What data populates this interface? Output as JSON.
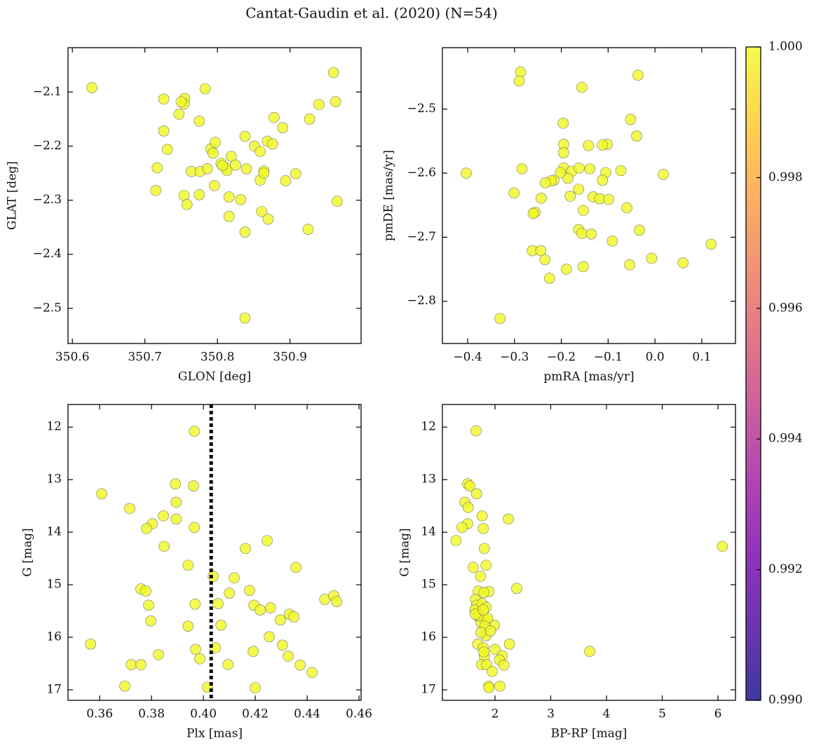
{
  "title": "Cantat-Gaudin et al. (2020) (N=54)",
  "chart_data": [
    {
      "type": "scatter",
      "xlabel": "GLON [deg]",
      "ylabel": "GLAT [deg]",
      "color": "#f0f921",
      "xlim": [
        350.594,
        350.998
      ],
      "ylim": [
        -2.565,
        -2.018
      ],
      "xticks": [
        350.6,
        350.7,
        350.8,
        350.9
      ],
      "yticks": [
        {
          "value": -2.1,
          "label": "−2.1"
        },
        {
          "value": -2.2,
          "label": "−2.2"
        },
        {
          "value": -2.3,
          "label": "−2.3"
        },
        {
          "value": -2.4,
          "label": "−2.4"
        },
        {
          "value": -2.5,
          "label": "−2.5"
        }
      ],
      "x": [
        350.627,
        350.726,
        350.755,
        350.754,
        350.783,
        350.96,
        350.963,
        350.94,
        350.878,
        350.927,
        350.89,
        350.726,
        350.747,
        350.775,
        350.838,
        350.869,
        350.876,
        350.851,
        350.859,
        350.731,
        350.791,
        350.794,
        350.797,
        350.819,
        350.805,
        350.812,
        350.813,
        350.825,
        350.717,
        350.764,
        350.776,
        350.786,
        350.84,
        350.864,
        350.859,
        350.908,
        350.894,
        350.715,
        350.754,
        350.775,
        350.796,
        350.816,
        350.832,
        350.965,
        350.758,
        350.861,
        350.816,
        350.87,
        350.925,
        350.838,
        350.838,
        350.75,
        350.807,
        350.864
      ],
      "values": [
        -2.092,
        -2.113,
        -2.112,
        -2.122,
        -2.094,
        -2.064,
        -2.118,
        -2.123,
        -2.147,
        -2.15,
        -2.166,
        -2.172,
        -2.141,
        -2.154,
        -2.182,
        -2.191,
        -2.196,
        -2.2,
        -2.21,
        -2.206,
        -2.205,
        -2.213,
        -2.193,
        -2.219,
        -2.232,
        -2.24,
        -2.245,
        -2.235,
        -2.24,
        -2.247,
        -2.247,
        -2.242,
        -2.242,
        -2.246,
        -2.263,
        -2.251,
        -2.264,
        -2.282,
        -2.291,
        -2.29,
        -2.273,
        -2.294,
        -2.299,
        -2.302,
        -2.308,
        -2.321,
        -2.33,
        -2.335,
        -2.354,
        -2.359,
        -2.518,
        -2.118,
        -2.236,
        -2.25
      ]
    },
    {
      "type": "scatter",
      "xlabel": "pmRA [mas/yr]",
      "ylabel": "pmDE [mas/yr]",
      "color": "#f0f921",
      "xlim": [
        -0.454,
        0.172
      ],
      "ylim": [
        -2.866,
        -2.404
      ],
      "xticks": [
        {
          "value": -0.4,
          "label": "−0.4"
        },
        {
          "value": -0.3,
          "label": "−0.3"
        },
        {
          "value": -0.2,
          "label": "−0.2"
        },
        {
          "value": -0.1,
          "label": "−0.1"
        },
        {
          "value": 0,
          "label": "0.0"
        },
        0.1
      ],
      "yticks": [
        {
          "value": -2.5,
          "label": "−2.5"
        },
        {
          "value": -2.6,
          "label": "−2.6"
        },
        {
          "value": -2.7,
          "label": "−2.7"
        },
        {
          "value": -2.8,
          "label": "−2.8"
        }
      ],
      "x": [
        -0.287,
        -0.29,
        -0.036,
        -0.156,
        -0.052,
        -0.196,
        -0.039,
        -0.195,
        -0.142,
        -0.102,
        -0.112,
        -0.195,
        -0.284,
        -0.403,
        -0.195,
        -0.178,
        -0.162,
        -0.139,
        -0.105,
        -0.073,
        0.018,
        -0.186,
        -0.216,
        -0.222,
        -0.234,
        -0.112,
        -0.301,
        -0.163,
        -0.181,
        -0.243,
        -0.132,
        -0.118,
        -0.256,
        -0.06,
        -0.033,
        -0.163,
        -0.156,
        -0.136,
        -0.091,
        -0.262,
        -0.244,
        -0.235,
        -0.007,
        0.12,
        0.06,
        -0.054,
        -0.189,
        -0.153,
        -0.225,
        -0.331,
        -0.202,
        -0.153,
        -0.099,
        -0.26
      ],
      "values": [
        -2.442,
        -2.456,
        -2.447,
        -2.466,
        -2.516,
        -2.522,
        -2.542,
        -2.555,
        -2.557,
        -2.555,
        -2.556,
        -2.568,
        -2.593,
        -2.6,
        -2.592,
        -2.597,
        -2.592,
        -2.593,
        -2.599,
        -2.596,
        -2.602,
        -2.608,
        -2.611,
        -2.612,
        -2.615,
        -2.611,
        -2.631,
        -2.625,
        -2.636,
        -2.639,
        -2.637,
        -2.64,
        -2.661,
        -2.654,
        -2.689,
        -2.688,
        -2.694,
        -2.695,
        -2.706,
        -2.721,
        -2.721,
        -2.735,
        -2.733,
        -2.711,
        -2.74,
        -2.743,
        -2.75,
        -2.746,
        -2.764,
        -2.827,
        -2.599,
        -2.658,
        -2.641,
        -2.663
      ]
    },
    {
      "type": "scatter",
      "xlabel": "Plx [mas]",
      "ylabel": "G [mag]",
      "color": "#f0f921",
      "vline": 0.403,
      "xlim": [
        0.3478,
        0.4608
      ],
      "ylim": [
        17.2,
        11.57
      ],
      "xticks": [
        0.36,
        0.38,
        {
          "value": 0.4,
          "label": "0.40"
        },
        0.42,
        0.44,
        0.46
      ],
      "yticks": [
        12,
        13,
        14,
        15,
        16,
        17
      ],
      "x": [
        0.3965,
        0.3608,
        0.3892,
        0.3962,
        0.3716,
        0.3895,
        0.3846,
        0.3895,
        0.3803,
        0.3781,
        0.3965,
        0.3849,
        0.4162,
        0.4246,
        0.3941,
        0.4357,
        0.4038,
        0.3759,
        0.3778,
        0.4119,
        0.4178,
        0.41,
        0.3789,
        0.4057,
        0.4195,
        0.4219,
        0.4259,
        0.4332,
        0.4349,
        0.3968,
        0.4297,
        0.3797,
        0.3941,
        0.4068,
        0.4468,
        0.4503,
        0.4514,
        0.4254,
        0.4305,
        0.3565,
        0.4046,
        0.397,
        0.4192,
        0.3827,
        0.4327,
        0.3722,
        0.3759,
        0.4095,
        0.4373,
        0.3986,
        0.4419,
        0.3697,
        0.4016,
        0.42
      ],
      "values": [
        12.08,
        13.27,
        13.08,
        13.12,
        13.55,
        13.43,
        13.69,
        13.75,
        13.84,
        13.93,
        13.91,
        14.27,
        14.31,
        14.16,
        14.63,
        14.67,
        14.84,
        15.08,
        15.12,
        14.87,
        15.11,
        15.16,
        15.39,
        15.36,
        15.39,
        15.48,
        15.44,
        15.56,
        15.61,
        15.37,
        15.67,
        15.69,
        15.79,
        15.77,
        15.28,
        15.21,
        15.32,
        15.99,
        16.15,
        16.13,
        16.2,
        16.23,
        16.27,
        16.33,
        16.36,
        16.52,
        16.52,
        16.52,
        16.53,
        16.41,
        16.67,
        16.93,
        16.95,
        16.96
      ]
    },
    {
      "type": "scatter",
      "xlabel": "BP-RP [mag]",
      "ylabel": "G [mag]",
      "color": "#f0f921",
      "xlim": [
        1.057,
        6.314
      ],
      "ylim": [
        17.2,
        11.57
      ],
      "xticks": [
        2,
        3,
        4,
        5,
        6
      ],
      "yticks": [
        12,
        13,
        14,
        15,
        16,
        17
      ],
      "x": [
        1.66,
        1.51,
        1.55,
        1.46,
        1.52,
        1.67,
        1.77,
        1.51,
        1.41,
        1.79,
        2.24,
        1.3,
        1.81,
        1.84,
        1.61,
        6.08,
        1.74,
        2.39,
        1.7,
        1.89,
        1.8,
        1.65,
        1.67,
        1.64,
        1.77,
        1.84,
        1.71,
        1.84,
        1.75,
        1.99,
        1.87,
        1.84,
        1.69,
        1.79,
        2.26,
        2.0,
        3.7,
        2.13,
        1.81,
        2.08,
        2.16,
        1.76,
        1.85,
        1.95,
        1.89,
        2.09,
        1.89,
        1.7,
        1.65,
        1.79,
        1.82,
        1.75,
        1.92,
        1.8
      ],
      "values": [
        12.07,
        13.08,
        13.12,
        13.43,
        13.53,
        13.27,
        13.69,
        13.84,
        13.91,
        13.93,
        13.75,
        14.16,
        14.31,
        14.63,
        14.67,
        14.27,
        14.84,
        15.07,
        15.12,
        15.13,
        15.15,
        15.28,
        15.39,
        15.48,
        15.36,
        15.43,
        15.61,
        15.67,
        15.72,
        15.77,
        15.64,
        15.97,
        16.13,
        16.2,
        16.13,
        16.23,
        16.27,
        16.35,
        16.36,
        16.43,
        16.53,
        16.52,
        16.52,
        16.65,
        16.93,
        16.93,
        16.96,
        15.59,
        15.56,
        15.48,
        15.79,
        15.91,
        15.88,
        16.28
      ]
    },
    {
      "type": "colorbar",
      "colormap": "plasma",
      "clim": [
        0.99,
        1
      ],
      "ticks": [
        {
          "value": 0.99,
          "label": "0.990"
        },
        0.992,
        0.994,
        0.996,
        0.998,
        {
          "value": 1,
          "label": "1.000"
        }
      ]
    }
  ]
}
